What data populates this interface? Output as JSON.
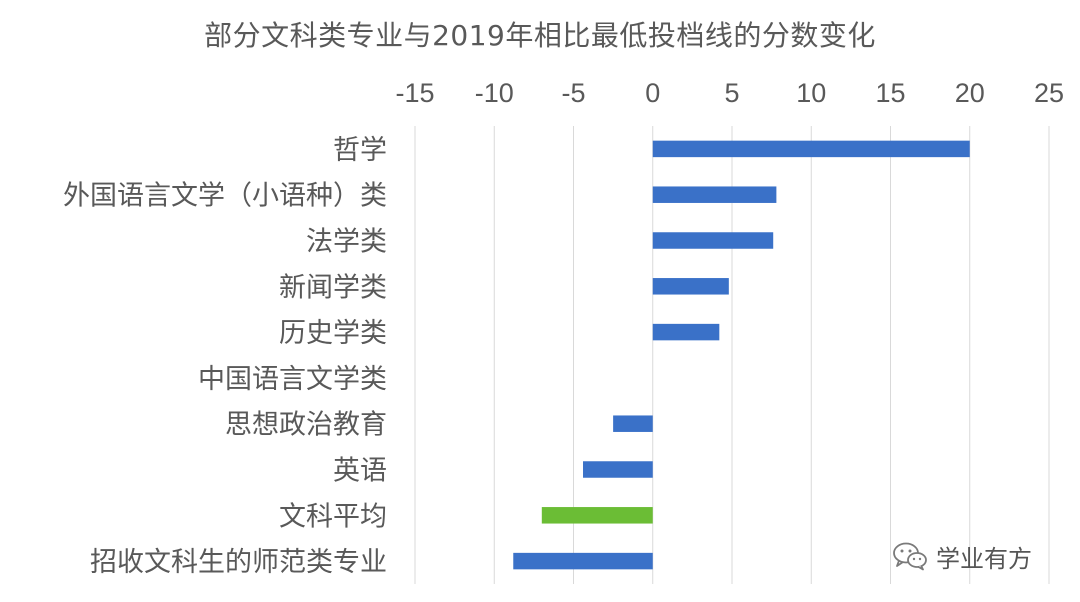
{
  "chart_data": {
    "type": "bar",
    "orientation": "horizontal",
    "title": "部分文科类专业与2019年相比最低投档线的分数变化",
    "categories": [
      "哲学",
      "外国语言文学（小语种）类",
      "法学类",
      "新闻学类",
      "历史学类",
      "中国语言文学类",
      "思想政治教育",
      "英语",
      "文科平均",
      "招收文科生的师范类专业"
    ],
    "values": [
      20,
      7.8,
      7.6,
      4.8,
      4.2,
      0,
      -2.5,
      -4.4,
      -7,
      -8.8
    ],
    "highlight_category": "文科平均",
    "xlim": [
      -15,
      25
    ],
    "xticks": [
      -15,
      -10,
      -5,
      0,
      5,
      10,
      15,
      20,
      25
    ],
    "x_axis_position": "top",
    "grid": true,
    "colors": {
      "bar": "#3a71c8",
      "highlight": "#6bbd35",
      "grid": "#d9d9d9",
      "text": "#595959"
    }
  },
  "watermark": {
    "icon": "wechat-icon",
    "text": "学业有方"
  }
}
